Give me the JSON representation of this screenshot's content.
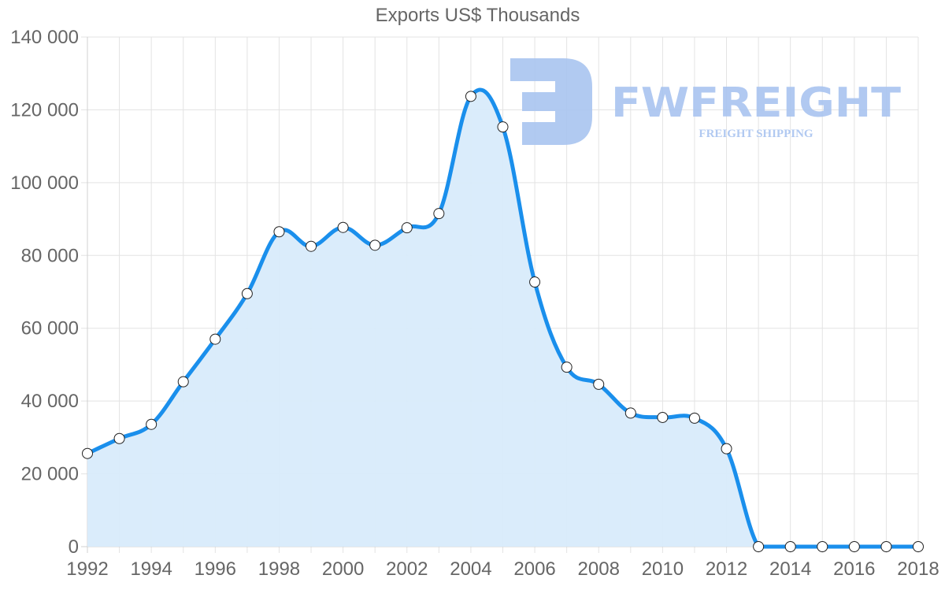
{
  "chart_data": {
    "type": "area",
    "title": "Exports US$ Thousands",
    "xlabel": "",
    "ylabel": "",
    "x": [
      1992,
      1993,
      1994,
      1995,
      1996,
      1997,
      1998,
      1999,
      2000,
      2001,
      2002,
      2003,
      2004,
      2005,
      2006,
      2007,
      2008,
      2009,
      2010,
      2011,
      2012,
      2013,
      2014,
      2015,
      2016,
      2017,
      2018
    ],
    "series": [
      {
        "name": "Exports US$ Thousands",
        "values": [
          25600,
          29700,
          33600,
          45300,
          57000,
          69500,
          86500,
          82500,
          87700,
          82800,
          87600,
          91500,
          123700,
          115300,
          72700,
          49300,
          44600,
          36700,
          35500,
          35300,
          26900,
          0,
          0,
          0,
          0,
          0,
          0
        ]
      }
    ],
    "ylim": [
      0,
      140000
    ],
    "xlim": [
      1992,
      2018
    ],
    "y_ticks": [
      "0",
      "20 000",
      "40 000",
      "60 000",
      "80 000",
      "100 000",
      "120 000",
      "140 000"
    ],
    "x_ticks": [
      "1992",
      "1994",
      "1996",
      "1998",
      "2000",
      "2002",
      "2004",
      "2006",
      "2008",
      "2010",
      "2012",
      "2014",
      "2016",
      "2018"
    ],
    "grid": true,
    "legend": "none",
    "colors": {
      "line": "#1a8fec",
      "fill": "#d8ebfb",
      "point_fill": "#ffffff",
      "point_stroke": "#222222",
      "grid": "#e3e3e3",
      "text": "#666666"
    }
  },
  "watermark": {
    "brand": "FWFREIGHT",
    "tagline": "FREIGHT SHIPPING",
    "color": "#a9c4f0"
  }
}
